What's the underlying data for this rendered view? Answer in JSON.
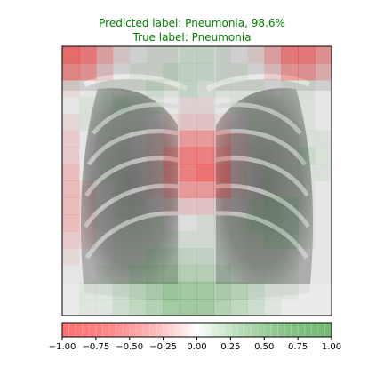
{
  "figure": {
    "title_lines": [
      "Predicted label: Pneumonia, 98.6%",
      "True label: Pneumonia"
    ],
    "title_color": "#008000"
  },
  "chart_data": {
    "type": "heatmap",
    "description_of_marks": "chest x-ray overlaid with a red-white-green saliency heatmap",
    "predicted_label": "Pneumonia",
    "confidence_percent": 98.6,
    "true_label": "Pneumonia",
    "colorbar": {
      "range": [
        -1.0,
        1.0
      ],
      "ticks": [
        -1.0,
        -0.75,
        -0.5,
        -0.25,
        0.0,
        0.25,
        0.5,
        0.75,
        1.0
      ],
      "tick_labels": [
        "−1.00",
        "−0.75",
        "−0.50",
        "−0.25",
        "0.00",
        "0.25",
        "0.50",
        "0.75",
        "1.00"
      ],
      "colors": {
        "negative": "#ff0000",
        "zero": "#ffffff",
        "positive": "#008000"
      }
    },
    "heatmap_grid": {
      "rows": 16,
      "cols": 16,
      "approx_values": [
        [
          -0.8,
          -0.7,
          -0.4,
          -0.1,
          0.0,
          0.1,
          0.1,
          0.2,
          0.2,
          0.1,
          0.0,
          -0.1,
          -0.4,
          -0.7,
          -0.7,
          -0.5
        ],
        [
          -0.6,
          -0.5,
          -0.2,
          0.0,
          0.1,
          0.1,
          0.2,
          0.2,
          0.2,
          0.1,
          0.1,
          0.0,
          -0.2,
          -0.5,
          -0.5,
          -0.3
        ],
        [
          -0.1,
          0.0,
          0.1,
          0.1,
          0.1,
          0.2,
          0.1,
          0.2,
          0.1,
          0.1,
          0.1,
          0.1,
          0.0,
          0.1,
          0.1,
          0.0
        ],
        [
          0.0,
          0.1,
          0.1,
          0.2,
          0.1,
          0.1,
          0.0,
          -0.1,
          -0.1,
          0.0,
          0.1,
          0.1,
          0.1,
          0.1,
          0.1,
          0.0
        ],
        [
          -0.1,
          0.1,
          0.1,
          0.1,
          0.1,
          0.0,
          -0.1,
          -0.2,
          -0.2,
          -0.1,
          0.0,
          0.1,
          0.1,
          0.1,
          0.1,
          0.0
        ],
        [
          -0.2,
          0.0,
          0.1,
          0.1,
          0.0,
          -0.1,
          -0.2,
          -0.5,
          -0.5,
          -0.3,
          -0.1,
          0.1,
          0.1,
          0.1,
          0.1,
          0.1
        ],
        [
          -0.2,
          0.0,
          0.1,
          0.1,
          0.0,
          -0.1,
          -0.4,
          -0.7,
          -0.7,
          -0.4,
          -0.1,
          0.1,
          0.1,
          0.1,
          0.2,
          0.1
        ],
        [
          -0.3,
          0.0,
          0.1,
          0.1,
          0.0,
          -0.1,
          -0.4,
          -0.7,
          -0.8,
          -0.5,
          -0.1,
          0.0,
          0.1,
          0.1,
          0.1,
          0.1
        ],
        [
          -0.3,
          -0.1,
          0.0,
          0.1,
          0.0,
          -0.1,
          -0.3,
          -0.5,
          -0.5,
          -0.4,
          -0.1,
          0.0,
          0.1,
          0.1,
          0.1,
          0.0
        ],
        [
          -0.3,
          -0.1,
          0.0,
          0.1,
          0.1,
          0.0,
          -0.1,
          -0.2,
          -0.2,
          -0.1,
          0.0,
          0.1,
          0.2,
          0.2,
          0.1,
          0.0
        ],
        [
          -0.3,
          -0.1,
          0.0,
          0.1,
          0.1,
          0.1,
          0.0,
          0.0,
          0.1,
          0.1,
          0.1,
          0.2,
          0.2,
          0.2,
          0.1,
          0.0
        ],
        [
          -0.2,
          -0.1,
          0.0,
          0.1,
          0.1,
          0.1,
          0.1,
          0.1,
          0.1,
          0.1,
          0.1,
          0.1,
          0.2,
          0.2,
          0.1,
          0.0
        ],
        [
          -0.1,
          0.0,
          0.0,
          0.1,
          0.1,
          0.2,
          0.2,
          0.2,
          0.2,
          0.1,
          0.1,
          0.1,
          0.1,
          0.1,
          0.0,
          0.0
        ],
        [
          0.0,
          0.0,
          0.1,
          0.1,
          0.2,
          0.3,
          0.3,
          0.3,
          0.3,
          0.2,
          0.1,
          0.1,
          0.1,
          0.1,
          0.0,
          0.0
        ],
        [
          0.0,
          0.1,
          0.1,
          0.2,
          0.3,
          0.4,
          0.5,
          0.5,
          0.5,
          0.4,
          0.3,
          0.2,
          0.1,
          0.1,
          0.0,
          0.0
        ],
        [
          0.0,
          0.1,
          0.1,
          0.2,
          0.3,
          0.4,
          0.5,
          0.5,
          0.5,
          0.4,
          0.3,
          0.2,
          0.1,
          0.0,
          0.0,
          0.0
        ]
      ]
    }
  }
}
